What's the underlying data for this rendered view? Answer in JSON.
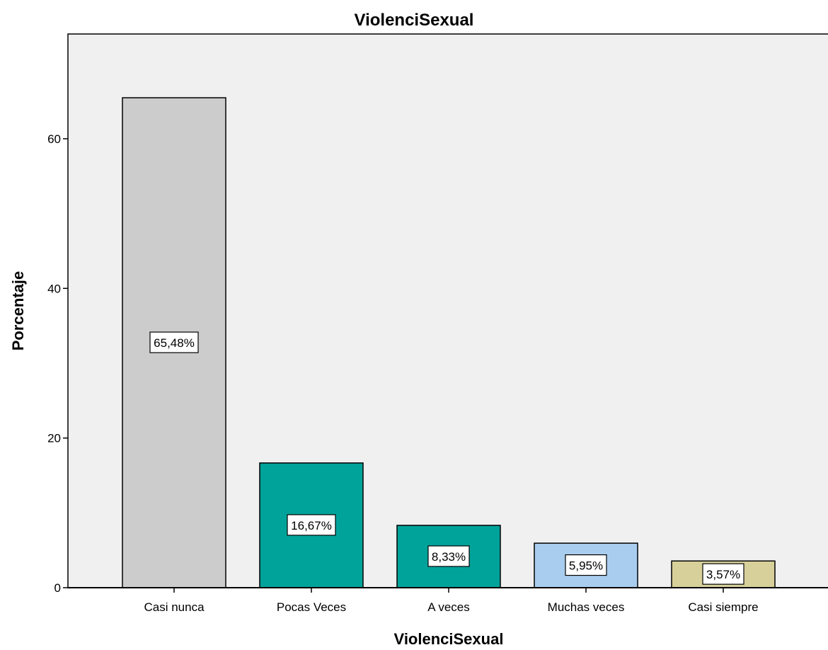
{
  "chart_data": {
    "type": "bar",
    "title": "ViolenciSexual",
    "xlabel": "ViolenciSexual",
    "ylabel": "Porcentaje",
    "categories": [
      "Casi nunca",
      "Pocas Veces",
      "A veces",
      "Muchas veces",
      "Casi siempre"
    ],
    "values": [
      65.48,
      16.67,
      8.33,
      5.95,
      3.57
    ],
    "data_labels": [
      "65,48%",
      "16,67%",
      "8,33%",
      "5,95%",
      "3,57%"
    ],
    "bar_colors": [
      "#cccccc",
      "#00a39a",
      "#00a39a",
      "#a9cdee",
      "#d7d09a"
    ],
    "ylim": [
      0,
      74
    ],
    "yticks": [
      0,
      20,
      40,
      60
    ],
    "ytick_labels": [
      "0",
      "20",
      "40",
      "60"
    ],
    "grid": false,
    "legend": "none",
    "plot_background": "#f0f0f0"
  }
}
